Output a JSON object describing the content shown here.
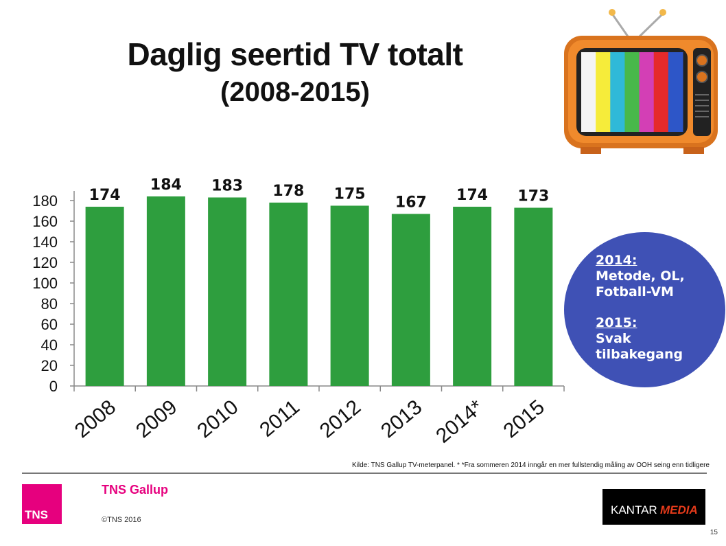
{
  "title": "Daglig seertid TV totalt",
  "subtitle": "(2008-2015)",
  "chart_data": {
    "type": "bar",
    "categories": [
      "2008",
      "2009",
      "2010",
      "2011",
      "2012",
      "2013",
      "2014*",
      "2015"
    ],
    "values": [
      174,
      184,
      183,
      178,
      175,
      167,
      174,
      173
    ],
    "data_labels": [
      "174",
      "184",
      "183",
      "178",
      "175",
      "167",
      "174",
      "173"
    ],
    "ylim": [
      0,
      180
    ],
    "yticks": [
      "0",
      "20",
      "40",
      "60",
      "80",
      "100",
      "120",
      "140",
      "160",
      "180"
    ],
    "bar_color": "#2e9e3e",
    "grid": false,
    "legend": "none"
  },
  "note": {
    "heading1": "2014:",
    "text1": [
      "Metode, OL,",
      "Fotball-VM"
    ],
    "heading2": "2015:",
    "text2": [
      "Svak",
      "tilbakegang"
    ]
  },
  "source": "Kilde: TNS Gallup TV-meterpanel. * *Fra sommeren 2014 inngår en mer fullstendig måling av OOH seing enn tidligere",
  "footer": {
    "logo_text": "TNS",
    "brand": "TNS Gallup",
    "copyright": "©TNS 2016",
    "kantar_1": "KANTAR",
    "kantar_2": "MEDIA",
    "page_number": "15"
  },
  "tv_colors": [
    "#f4f4f4",
    "#f6ec3a",
    "#2fb9d8",
    "#48b84a",
    "#d33fb5",
    "#e52a2a",
    "#2d56c8"
  ]
}
